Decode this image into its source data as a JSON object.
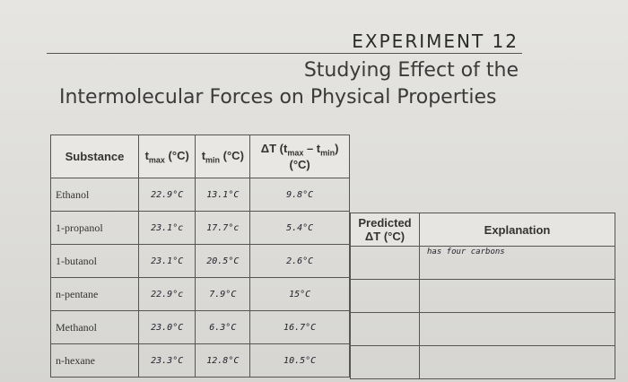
{
  "header": {
    "experiment": "EXPERIMENT 12",
    "subtitle_line1": "Studying Effect of the",
    "subtitle_line2": "Intermolecular Forces on Physical Properties"
  },
  "main_table": {
    "col_substance": "Substance",
    "col_tmax_t": "t",
    "col_tmax_sub": "max",
    "col_tmax_unit": " (°C)",
    "col_tmin_t": "t",
    "col_tmin_sub": "min",
    "col_tmin_unit": " (°C)",
    "col_delta_pre": "ΔT (t",
    "col_delta_sub1": "max",
    "col_delta_mid": " – t",
    "col_delta_sub2": "min",
    "col_delta_post": ")",
    "col_delta_unit": "(°C)",
    "rows": [
      {
        "substance": "Ethanol",
        "tmax": "22.9°C",
        "tmin": "13.1°C",
        "delta": "9.8°C"
      },
      {
        "substance": "1-propanol",
        "tmax": "23.1°c",
        "tmin": "17.7°c",
        "delta": "5.4°C"
      },
      {
        "substance": "1-butanol",
        "tmax": "23.1°C",
        "tmin": "20.5°C",
        "delta": "2.6°C"
      },
      {
        "substance": "n-pentane",
        "tmax": "22.9°c",
        "tmin": "7.9°C",
        "delta": "15°C"
      },
      {
        "substance": "Methanol",
        "tmax": "23.0°C",
        "tmin": "6.3°C",
        "delta": "16.7°C"
      },
      {
        "substance": "n-hexane",
        "tmax": "23.3°C",
        "tmin": "12.8°C",
        "delta": "10.5°C"
      }
    ]
  },
  "side_table": {
    "col_predicted_line1": "Predicted",
    "col_predicted_line2": "ΔT (°C)",
    "col_explanation": "Explanation",
    "first_explanation": "has four carbons"
  }
}
